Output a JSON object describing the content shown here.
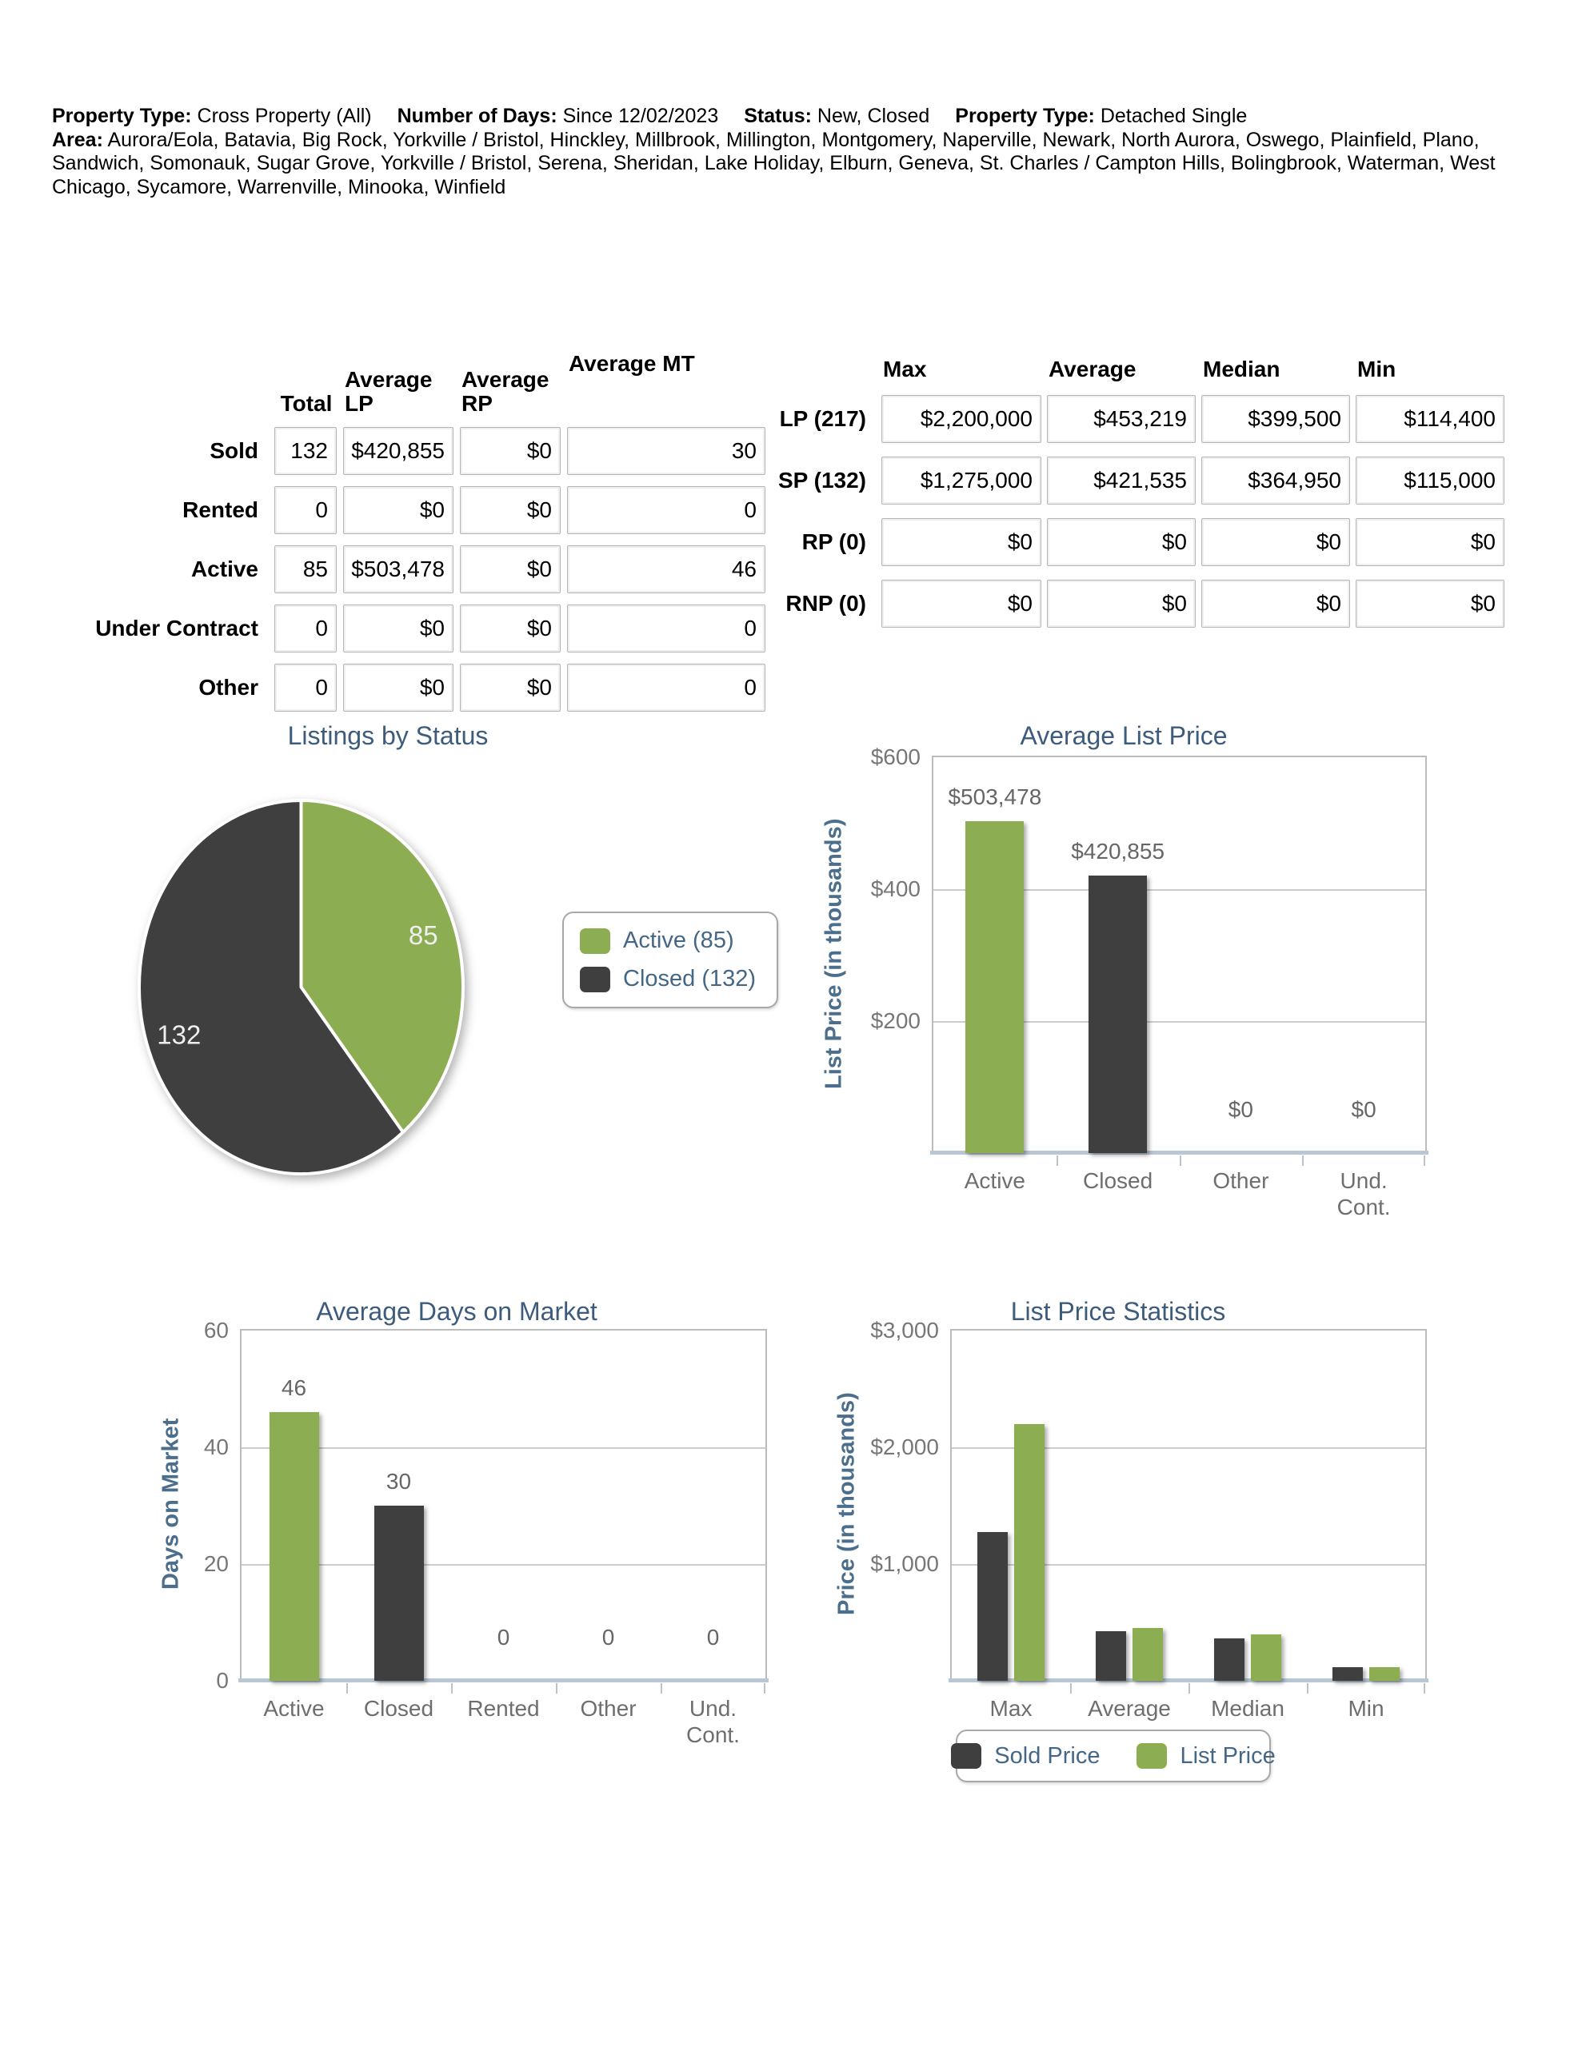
{
  "header": {
    "filters": [
      {
        "label": "Property Type:",
        "value": "Cross Property (All)"
      },
      {
        "label": "Number of Days:",
        "value": "Since 12/02/2023"
      },
      {
        "label": "Status:",
        "value": "New, Closed"
      },
      {
        "label": "Property Type:",
        "value": "Detached Single"
      }
    ],
    "area": {
      "label": "Area:",
      "value": "Aurora/Eola, Batavia, Big Rock, Yorkville / Bristol, Hinckley, Millbrook, Millington, Montgomery, Naperville, Newark, North Aurora, Oswego, Plainfield, Plano, Sandwich, Somonauk, Sugar Grove, Yorkville / Bristol, Serena, Sheridan, Lake Holiday, Elburn, Geneva, St. Charles / Campton Hills, Bolingbrook, Waterman, West Chicago, Sycamore, Warrenville, Minooka, Winfield"
    }
  },
  "status_table": {
    "col_headers": [
      "Total",
      "Average LP",
      "Average RP",
      "Average MT"
    ],
    "rows": [
      {
        "label": "Sold",
        "cells": [
          "132",
          "$420,855",
          "$0",
          "30"
        ]
      },
      {
        "label": "Rented",
        "cells": [
          "0",
          "$0",
          "$0",
          "0"
        ]
      },
      {
        "label": "Active",
        "cells": [
          "85",
          "$503,478",
          "$0",
          "46"
        ]
      },
      {
        "label": "Under Contract",
        "cells": [
          "0",
          "$0",
          "$0",
          "0"
        ]
      },
      {
        "label": "Other",
        "cells": [
          "0",
          "$0",
          "$0",
          "0"
        ]
      }
    ]
  },
  "price_table": {
    "col_headers": [
      "Max",
      "Average",
      "Median",
      "Min"
    ],
    "rows": [
      {
        "label": "LP (217)",
        "cells": [
          "$2,200,000",
          "$453,219",
          "$399,500",
          "$114,400"
        ]
      },
      {
        "label": "SP (132)",
        "cells": [
          "$1,275,000",
          "$421,535",
          "$364,950",
          "$115,000"
        ]
      },
      {
        "label": "RP (0)",
        "cells": [
          "$0",
          "$0",
          "$0",
          "$0"
        ]
      },
      {
        "label": "RNP (0)",
        "cells": [
          "$0",
          "$0",
          "$0",
          "$0"
        ]
      }
    ]
  },
  "colors": {
    "green": "#8CAD52",
    "dark_gray": "#3F3F3F",
    "title_blue": "#3D5C7B",
    "axis_label_blue": "#4B6E8C"
  },
  "chart_data": [
    {
      "id": "listings_by_status",
      "type": "pie",
      "title": "Listings by Status",
      "labels": [
        "Active",
        "Closed"
      ],
      "values": [
        85,
        132
      ],
      "slice_labels": [
        "85",
        "132"
      ],
      "colors": [
        "#8CAD52",
        "#3F3F3F"
      ],
      "legend": [
        "Active (85)",
        "Closed (132)"
      ],
      "legend_position": "right"
    },
    {
      "id": "avg_list_price",
      "type": "bar",
      "title": "Average List Price",
      "ylabel": "List Price (in thousands)",
      "categories": [
        "Active",
        "Closed",
        "Other",
        "Und. Cont."
      ],
      "values": [
        503.478,
        420.855,
        0,
        0
      ],
      "bar_labels": [
        "$503,478",
        "$420,855",
        "$0",
        "$0"
      ],
      "colors": [
        "#8CAD52",
        "#3F3F3F",
        "#8CAD52",
        "#3F3F3F"
      ],
      "ylim": [
        0,
        600
      ],
      "yticks": [
        {
          "label": "$600",
          "value": 600
        },
        {
          "label": "$400",
          "value": 400
        },
        {
          "label": "$200",
          "value": 200
        }
      ],
      "grid": true
    },
    {
      "id": "avg_days_on_market",
      "type": "bar",
      "title": "Average Days on Market",
      "ylabel": "Days on Market",
      "categories": [
        "Active",
        "Closed",
        "Rented",
        "Other",
        "Und. Cont."
      ],
      "values": [
        46,
        30,
        0,
        0,
        0
      ],
      "bar_labels": [
        "46",
        "30",
        "0",
        "0",
        "0"
      ],
      "colors": [
        "#8CAD52",
        "#3F3F3F",
        "#8CAD52",
        "#3F3F3F",
        "#8CAD52"
      ],
      "ylim": [
        0,
        60
      ],
      "yticks": [
        {
          "label": "60",
          "value": 60
        },
        {
          "label": "40",
          "value": 40
        },
        {
          "label": "20",
          "value": 20
        },
        {
          "label": "0",
          "value": 0
        }
      ],
      "grid": true
    },
    {
      "id": "list_price_statistics",
      "type": "grouped_bar",
      "title": "List Price Statistics",
      "ylabel": "Price (in thousands)",
      "categories": [
        "Max",
        "Average",
        "Median",
        "Min"
      ],
      "series": [
        {
          "name": "Sold Price",
          "color": "#3F3F3F",
          "values": [
            1275,
            421.535,
            364.95,
            115
          ]
        },
        {
          "name": "List Price",
          "color": "#8CAD52",
          "values": [
            2200,
            453.219,
            399.5,
            114.4
          ]
        }
      ],
      "ylim": [
        0,
        3000
      ],
      "yticks": [
        {
          "label": "$3,000",
          "value": 3000
        },
        {
          "label": "$2,000",
          "value": 2000
        },
        {
          "label": "$1,000",
          "value": 1000
        }
      ],
      "grid": true,
      "legend_position": "bottom"
    }
  ]
}
